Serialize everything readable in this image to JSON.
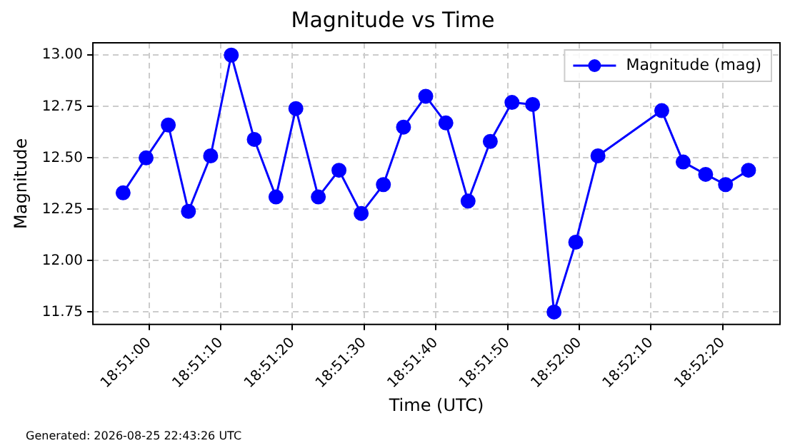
{
  "chart_data": {
    "type": "line",
    "title": "Magnitude vs Time",
    "xlabel": "Time (UTC)",
    "ylabel": "Magnitude",
    "annotations": [
      "Generated: 2026-08-25 22:43:26 UTC"
    ],
    "x": [
      18.849,
      18.84989,
      18.85075,
      18.85153,
      18.85239,
      18.85319,
      18.85408,
      18.85492,
      18.85569,
      18.85656,
      18.85736,
      18.85822,
      18.85908,
      18.85986,
      18.86072,
      18.8615,
      18.86236,
      18.86322,
      18.86406,
      18.86486,
      18.86569,
      18.86653,
      18.86739,
      18.86986,
      18.87069,
      18.87156,
      18.87233,
      18.87322
    ],
    "series": [
      {
        "name": "Magnitude (mag)",
        "color": "#0000ff",
        "values": [
          12.33,
          12.5,
          12.66,
          12.24,
          12.51,
          13.0,
          12.59,
          12.31,
          12.74,
          12.31,
          12.44,
          12.23,
          12.37,
          12.65,
          12.8,
          12.67,
          12.29,
          12.58,
          12.77,
          12.76,
          11.75,
          12.09,
          12.51,
          12.73,
          12.48,
          12.42,
          12.37,
          12.44
        ]
      }
    ],
    "xlim": [
      18.84783,
      18.87444
    ],
    "xticks": [
      {
        "value": 18.85,
        "label": "18:51:00"
      },
      {
        "value": 18.85278,
        "label": "18:51:10"
      },
      {
        "value": 18.85556,
        "label": "18:51:20"
      },
      {
        "value": 18.85833,
        "label": "18:51:30"
      },
      {
        "value": 18.86111,
        "label": "18:51:40"
      },
      {
        "value": 18.86389,
        "label": "18:51:50"
      },
      {
        "value": 18.86667,
        "label": "18:52:00"
      },
      {
        "value": 18.86944,
        "label": "18:52:10"
      },
      {
        "value": 18.87222,
        "label": "18:52:20"
      }
    ],
    "ylim": [
      11.69,
      13.06
    ],
    "yticks": [
      {
        "value": 11.75,
        "label": "11.75"
      },
      {
        "value": 12.0,
        "label": "12.00"
      },
      {
        "value": 12.25,
        "label": "12.25"
      },
      {
        "value": 12.5,
        "label": "12.50"
      },
      {
        "value": 12.75,
        "label": "12.75"
      },
      {
        "value": 13.0,
        "label": "13.00"
      }
    ],
    "grid": true,
    "legend": "top right",
    "marker": "circle",
    "line_style": "solid"
  }
}
